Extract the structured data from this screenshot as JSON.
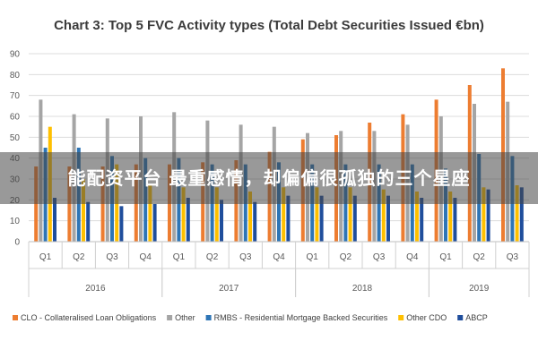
{
  "chart_data": {
    "type": "bar",
    "title": "Chart 3: Top 5 FVC Activity types (Total Debt Securities Issued €bn)",
    "xlabel": "",
    "ylabel": "",
    "ylim": [
      0,
      90
    ],
    "yticks": [
      0,
      10,
      20,
      30,
      40,
      50,
      60,
      70,
      80,
      90
    ],
    "grid": true,
    "legend_position": "bottom",
    "categories": [
      "Q1",
      "Q2",
      "Q3",
      "Q4",
      "Q1",
      "Q2",
      "Q3",
      "Q4",
      "Q1",
      "Q2",
      "Q3",
      "Q4",
      "Q1",
      "Q2",
      "Q3"
    ],
    "years": [
      {
        "label": "2016",
        "start": 0,
        "count": 4
      },
      {
        "label": "2017",
        "start": 4,
        "count": 4
      },
      {
        "label": "2018",
        "start": 8,
        "count": 4
      },
      {
        "label": "2019",
        "start": 12,
        "count": 3
      }
    ],
    "series": [
      {
        "name": "CLO - Collateralised Loan Obligations",
        "color": "#ed7d31",
        "values": [
          36,
          36,
          36,
          37,
          37,
          38,
          39,
          43,
          49,
          51,
          57,
          61,
          68,
          75,
          83
        ]
      },
      {
        "name": "Other",
        "color": "#a5a5a5",
        "values": [
          68,
          61,
          59,
          60,
          62,
          58,
          56,
          55,
          52,
          53,
          53,
          56,
          60,
          66,
          67
        ]
      },
      {
        "name": "RMBS - Residential Mortgage Backed Securities",
        "color": "#2e75b6",
        "values": [
          45,
          45,
          41,
          40,
          40,
          37,
          37,
          38,
          37,
          37,
          37,
          37,
          35,
          42,
          41
        ]
      },
      {
        "name": "Other CDO",
        "color": "#ffc000",
        "values": [
          55,
          30,
          37,
          27,
          26,
          26,
          24,
          26,
          26,
          26,
          25,
          24,
          24,
          26,
          27
        ]
      },
      {
        "name": "ABCP",
        "color": "#1f4e9c",
        "values": [
          21,
          19,
          17,
          18,
          21,
          20,
          19,
          22,
          22,
          22,
          22,
          21,
          21,
          25,
          26
        ]
      }
    ]
  },
  "overlay": {
    "text": "能配资平台 最重感情，却偏偏很孤独的三个星座"
  }
}
